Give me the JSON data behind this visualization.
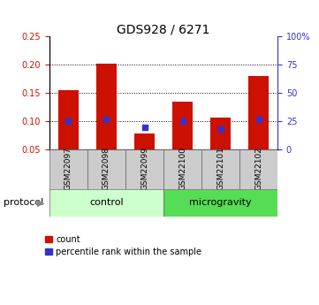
{
  "title": "GDS928 / 6271",
  "samples": [
    "GSM22097",
    "GSM22098",
    "GSM22099",
    "GSM22100",
    "GSM22101",
    "GSM22102"
  ],
  "count_values": [
    0.155,
    0.202,
    0.078,
    0.135,
    0.107,
    0.18
  ],
  "percentile_values": [
    25,
    27,
    20,
    25,
    18,
    27
  ],
  "bar_color": "#cc1100",
  "blue_color": "#3333cc",
  "ylim_left": [
    0.05,
    0.25
  ],
  "ylim_right": [
    0,
    100
  ],
  "left_yticks": [
    0.05,
    0.1,
    0.15,
    0.2,
    0.25
  ],
  "right_yticks": [
    0,
    25,
    50,
    75,
    100
  ],
  "right_yticklabels": [
    "0",
    "25",
    "50",
    "75",
    "100%"
  ],
  "dotted_levels": [
    0.1,
    0.15,
    0.2
  ],
  "group_labels": [
    "control",
    "microgravity"
  ],
  "group_ranges": [
    [
      0,
      3
    ],
    [
      3,
      6
    ]
  ],
  "group_color_light": "#ccffcc",
  "group_color_dark": "#55dd55",
  "protocol_label": "protocol",
  "legend_items": [
    "count",
    "percentile rank within the sample"
  ],
  "bar_bottom": 0.05,
  "bar_width": 0.55,
  "bg_color": "#ffffff",
  "sample_box_color": "#cccccc",
  "title_fontsize": 10,
  "axis_fontsize": 7,
  "label_fontsize": 6.5,
  "group_fontsize": 8,
  "legend_fontsize": 7
}
